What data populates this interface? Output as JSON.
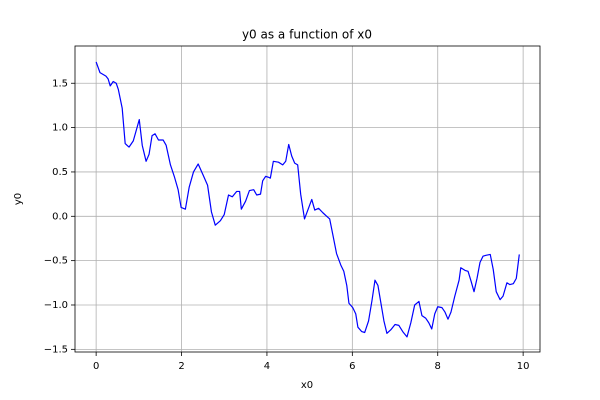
{
  "chart_data": {
    "type": "line",
    "title": "y0 as a function of x0",
    "x_label": "x0",
    "y_label": "y0",
    "x": [
      0,
      0.09,
      0.23,
      0.28,
      0.33,
      0.4,
      0.47,
      0.52,
      0.61,
      0.68,
      0.77,
      0.87,
      1.01,
      1.08,
      1.17,
      1.24,
      1.31,
      1.38,
      1.46,
      1.57,
      1.64,
      1.74,
      1.83,
      1.92,
      1.99,
      2.09,
      2.18,
      2.28,
      2.39,
      2.51,
      2.61,
      2.7,
      2.79,
      2.91,
      3.0,
      3.1,
      3.19,
      3.29,
      3.36,
      3.4,
      3.5,
      3.59,
      3.69,
      3.76,
      3.85,
      3.9,
      3.97,
      4.04,
      4.08,
      4.15,
      4.27,
      4.37,
      4.44,
      4.51,
      4.58,
      4.65,
      4.72,
      4.79,
      4.88,
      4.95,
      5.05,
      5.12,
      5.21,
      5.31,
      5.4,
      5.47,
      5.54,
      5.63,
      5.73,
      5.8,
      5.87,
      5.92,
      6.01,
      6.08,
      6.13,
      6.22,
      6.29,
      6.38,
      6.46,
      6.53,
      6.6,
      6.67,
      6.74,
      6.81,
      6.9,
      7.0,
      7.09,
      7.18,
      7.28,
      7.37,
      7.46,
      7.56,
      7.63,
      7.72,
      7.79,
      7.86,
      7.93,
      8.0,
      8.1,
      8.17,
      8.24,
      8.31,
      8.4,
      8.5,
      8.54,
      8.64,
      8.71,
      8.78,
      8.85,
      8.92,
      8.99,
      9.06,
      9.13,
      9.23,
      9.3,
      9.37,
      9.46,
      9.53,
      9.62,
      9.69,
      9.77,
      9.84,
      9.91
    ],
    "series": [
      {
        "name": "y0",
        "color": "#0000ff",
        "values": [
          1.74,
          1.62,
          1.58,
          1.55,
          1.47,
          1.52,
          1.5,
          1.43,
          1.22,
          0.82,
          0.78,
          0.85,
          1.09,
          0.8,
          0.62,
          0.7,
          0.91,
          0.93,
          0.86,
          0.86,
          0.8,
          0.58,
          0.45,
          0.3,
          0.1,
          0.08,
          0.33,
          0.5,
          0.59,
          0.46,
          0.35,
          0.05,
          -0.1,
          -0.05,
          0.02,
          0.24,
          0.22,
          0.28,
          0.28,
          0.08,
          0.17,
          0.29,
          0.3,
          0.24,
          0.25,
          0.4,
          0.45,
          0.44,
          0.43,
          0.62,
          0.61,
          0.58,
          0.62,
          0.81,
          0.68,
          0.6,
          0.58,
          0.25,
          -0.03,
          0.06,
          0.19,
          0.07,
          0.09,
          0.04,
          0.0,
          -0.03,
          -0.2,
          -0.42,
          -0.55,
          -0.62,
          -0.78,
          -0.98,
          -1.03,
          -1.1,
          -1.25,
          -1.3,
          -1.31,
          -1.18,
          -0.95,
          -0.72,
          -0.78,
          -0.98,
          -1.18,
          -1.32,
          -1.28,
          -1.22,
          -1.23,
          -1.3,
          -1.36,
          -1.2,
          -1.0,
          -0.96,
          -1.12,
          -1.15,
          -1.2,
          -1.27,
          -1.1,
          -1.02,
          -1.03,
          -1.08,
          -1.16,
          -1.08,
          -0.9,
          -0.72,
          -0.58,
          -0.61,
          -0.62,
          -0.73,
          -0.85,
          -0.7,
          -0.52,
          -0.45,
          -0.44,
          -0.43,
          -0.6,
          -0.85,
          -0.94,
          -0.9,
          -0.75,
          -0.77,
          -0.76,
          -0.7,
          -0.43
        ]
      }
    ],
    "xlim": [
      -0.495,
      10.395
    ],
    "ylim": [
      -1.53,
      1.92
    ],
    "xticks": [
      0,
      2,
      4,
      6,
      8,
      10
    ],
    "yticks": [
      {
        "value": -1.5,
        "label": "−1.5"
      },
      {
        "value": -1.0,
        "label": "−1.0"
      },
      {
        "value": -0.5,
        "label": "−0.5"
      },
      {
        "value": 0,
        "label": "0.0"
      },
      {
        "value": 0.5,
        "label": "0.5"
      },
      {
        "value": 1.0,
        "label": "1.0"
      },
      {
        "value": 1.5,
        "label": "1.5"
      }
    ],
    "grid": true
  }
}
